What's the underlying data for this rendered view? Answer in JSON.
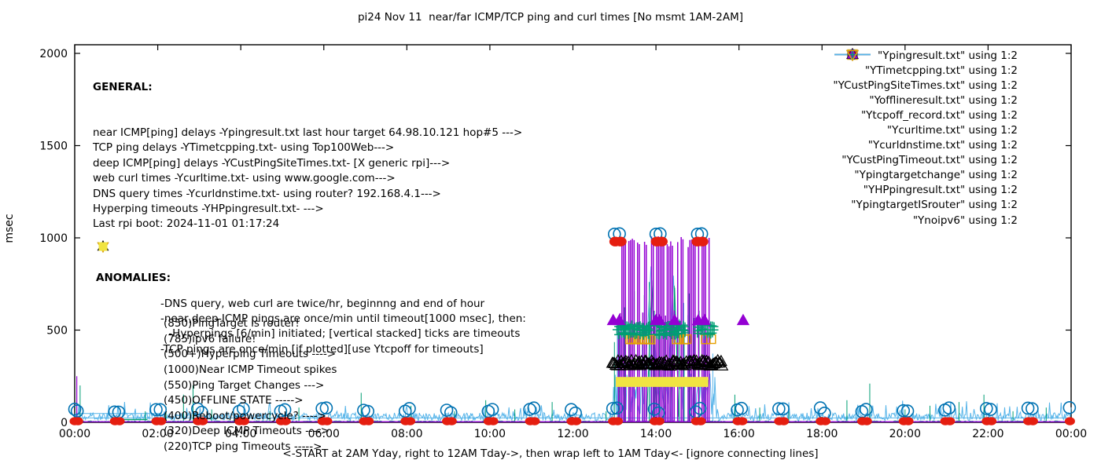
{
  "title": "pi24 Nov 11  near/far ICMP/TCP ping and curl times [No msmt 1AM-2AM]",
  "ylabel": "msec",
  "xlabel": "<-START at 2AM Yday, right to 12AM Tday->, then wrap left to 1AM Tday<- [ignore connecting lines]",
  "general": {
    "header": "GENERAL:",
    "lines": [
      "near ICMP[ping] delays -Ypingresult.txt last hour target 64.98.10.121 hop#5 --->",
      "TCP ping delays -YTimetcpping.txt- using Top100Web--->",
      "deep ICMP[ping] delays -YCustPingSiteTimes.txt- [X generic rpi]--->",
      "web curl times -Ycurltime.txt- using www.google.com--->",
      "DNS query times -Ycurldnstime.txt- using router? 192.168.4.1--->",
      "Hyperping timeouts -YHPpingresult.txt- --->",
      "Last rpi boot: 2024-11-01 01:17:24"
    ],
    "indented_lines": [
      "-DNS query, web curl are twice/hr, beginnng and end of hour",
      "-near,deep ICMP pings are once/min until timeout[1000 msec], then:",
      " -Hyperpings [6/min] initiated; [vertical stacked] ticks are timeouts",
      "-TCP pings are once/min [if plotted][use Ytcpoff for timeouts]"
    ]
  },
  "anomalies": {
    "header": "ANOMALIES:",
    "items": [
      {
        "icon": "open-triangle-down",
        "color": "#56b4e9",
        "text": "(850)PingTarget is router!"
      },
      {
        "icon": "open-triangle-down",
        "color": "#e69f00",
        "text": "(785)ipv6 failure!"
      },
      {
        "icon": "plus",
        "color": "#009e73",
        "text": "(500+)Hyperping Timeouts ---->"
      },
      {
        "icon": null,
        "color": null,
        "text": "(1000)Near ICMP Timeout spikes"
      },
      {
        "icon": "filled-triangle-up",
        "color": "#9400d3",
        "text": "(550)Ping Target Changes --->"
      },
      {
        "icon": null,
        "color": null,
        "text": "(450)OFFLINE STATE ----->"
      },
      {
        "icon": null,
        "color": null,
        "text": "(400)Reboot/powercycle? ---->"
      },
      {
        "icon": "open-triangle-up",
        "color": "#000000",
        "text": "(320)Deep ICMP Timeouts ---->"
      },
      {
        "icon": "filled-square",
        "color": "#f0e442",
        "text": "(220)TCP ping Timeouts ----->"
      }
    ]
  },
  "chart_data": {
    "type": "line",
    "title": "pi24 Nov 11  near/far ICMP/TCP ping and curl times [No msmt 1AM-2AM]",
    "xlabel": "<-START at 2AM Yday, right to 12AM Tday->, then wrap left to 1AM Tday<- [ignore connecting lines]",
    "ylabel": "msec",
    "grid": false,
    "legend_position": "top-right-inside",
    "x_axis": {
      "range_hours": [
        0,
        24
      ],
      "tick_hours": [
        0,
        2,
        4,
        6,
        8,
        10,
        12,
        14,
        16,
        18,
        20,
        22,
        24
      ],
      "tick_labels": [
        "00:00",
        "02:00",
        "04:00",
        "06:00",
        "08:00",
        "10:00",
        "12:00",
        "14:00",
        "16:00",
        "18:00",
        "20:00",
        "22:00",
        "00:00"
      ]
    },
    "y_axis": {
      "range": [
        0,
        2000
      ],
      "ticks": [
        0,
        500,
        1000,
        1500,
        2000
      ],
      "label": "msec"
    },
    "event_window_hours": [
      12.97,
      15.45
    ],
    "series": [
      {
        "file": "Ypingresult.txt",
        "legend_label": "\"Ypingresult.txt\" using 1:2",
        "color": "#9400d3",
        "style": "line",
        "baseline_msec": 3,
        "spikes": [
          [
            0.05,
            250
          ]
        ],
        "event_vertical_lines": {
          "start": 12.97,
          "end": 15.32,
          "step": 0.042,
          "skip_fraction": 0.25,
          "tall_top_range": [
            950,
            1015
          ],
          "short_top_range": [
            540,
            625
          ],
          "short_fraction": 0.15
        }
      },
      {
        "file": "YTimetcpping.txt",
        "legend_label": "\"YTimetcpping.txt\" using 1:2",
        "color": "#009e73",
        "style": "line",
        "noise": {
          "base": 2,
          "amp": 6
        },
        "flat_segments": [
          [
            1.15,
            1.75,
            15
          ]
        ],
        "spikes": [
          [
            0.13,
            200
          ],
          [
            1.7,
            60
          ],
          [
            2.2,
            85
          ],
          [
            2.62,
            150
          ],
          [
            2.85,
            200
          ],
          [
            3.3,
            70
          ],
          [
            4.7,
            60
          ],
          [
            5.4,
            80
          ],
          [
            6.9,
            160
          ],
          [
            8.1,
            90
          ],
          [
            9.15,
            60
          ],
          [
            9.9,
            120
          ],
          [
            10.6,
            70
          ],
          [
            11.5,
            110
          ],
          [
            12.8,
            60
          ],
          [
            15.9,
            150
          ],
          [
            16.5,
            80
          ],
          [
            17.2,
            90
          ],
          [
            18.6,
            120
          ],
          [
            19.15,
            210
          ],
          [
            20.0,
            70
          ],
          [
            20.6,
            90
          ],
          [
            21.3,
            110
          ],
          [
            21.9,
            150
          ],
          [
            22.6,
            60
          ],
          [
            23.4,
            80
          ]
        ],
        "event_vertical_lines": {
          "start": 13.0,
          "end": 15.28,
          "step": 0.12,
          "skip_fraction": 0.35,
          "tall_top_range": [
            420,
            800
          ],
          "short_top_range": [
            420,
            800
          ],
          "short_fraction": 0
        },
        "event_peaks": [
          [
            13.9,
            770,
            0.12
          ],
          [
            14.45,
            730,
            0.1
          ]
        ]
      },
      {
        "file": "YCustPingSiteTimes.txt",
        "legend_label": "\"YCustPingSiteTimes.txt\" using 1:2",
        "color": "#56b4e9",
        "style": "line",
        "noise": {
          "base": 10,
          "amp": 42,
          "spike_chance": 0.08,
          "spike_amp": 75
        },
        "flat_segments": [
          [
            0,
            24,
            24
          ],
          [
            0,
            2.1,
            48
          ]
        ],
        "event_noise": {
          "base": 40,
          "amp": 230
        },
        "event_peaks": [
          [
            13.88,
            845,
            0.2
          ],
          [
            14.42,
            795,
            0.16
          ]
        ]
      },
      {
        "file": "Yofflineresult.txt",
        "legend_label": "\"Yofflineresult.txt\" using 1:2",
        "color": "#e69f00",
        "style": "open-square",
        "points": [
          [
            13.38,
            450
          ],
          [
            13.42,
            452
          ],
          [
            13.47,
            449
          ],
          [
            13.52,
            451
          ],
          [
            13.57,
            450
          ],
          [
            13.62,
            452
          ],
          [
            13.67,
            449
          ],
          [
            13.72,
            451
          ],
          [
            13.77,
            450
          ],
          [
            13.82,
            451
          ],
          [
            13.87,
            449
          ],
          [
            14.5,
            450
          ],
          [
            14.56,
            452
          ],
          [
            14.68,
            449
          ],
          [
            14.74,
            451
          ],
          [
            15.2,
            450
          ],
          [
            15.33,
            451
          ]
        ]
      },
      {
        "file": "Ytcpoff_record.txt",
        "legend_label": "\"Ytcpoff_record.txt\" using 1:2",
        "color": "#f0e442",
        "style": "filled-square",
        "band": {
          "start_hour": 13.03,
          "end_hour": 15.26,
          "msec_low": 192,
          "msec_high": 246
        }
      },
      {
        "file": "Ycurltime.txt",
        "legend_label": "\"Ycurltime.txt\" using 1:2",
        "color": "#0072b2",
        "style": "open-circle",
        "hourly_pairs": {
          "offsets": [
            -0.04,
            0.06
          ],
          "value_range": [
            48,
            80
          ]
        },
        "event_points": [
          [
            13.0,
            1020
          ],
          [
            13.12,
            1022
          ],
          [
            14.0,
            1020
          ],
          [
            14.1,
            1022
          ],
          [
            15.0,
            1020
          ],
          [
            15.1,
            1022
          ]
        ]
      },
      {
        "file": "Ycurldnstime.txt",
        "legend_label": "\"Ycurldnstime.txt\" using 1:2",
        "color": "#e51e10",
        "style": "filled-circle",
        "hourly_pairs": {
          "offsets": [
            -0.03,
            0.08
          ],
          "value": 6
        },
        "event_points": [
          [
            13.02,
            980
          ],
          [
            13.15,
            980
          ],
          [
            14.02,
            980
          ],
          [
            14.14,
            980
          ],
          [
            15.0,
            980
          ],
          [
            15.12,
            980
          ]
        ]
      },
      {
        "file": "YCustPingTimeout.txt",
        "legend_label": "\"YCustPingTimeout.txt\" using 1:2",
        "color": "#000000",
        "style": "open-triangle-up",
        "dense_row": {
          "start": 12.95,
          "end": 15.6,
          "step": 0.027,
          "msec": 320,
          "jitter": 15
        }
      },
      {
        "file": "Ypingtargetchange",
        "legend_label": "\"Ypingtargetchange\" using 1:2",
        "color": "#9400d3",
        "style": "filled-triangle-up",
        "points": [
          [
            12.97,
            552
          ],
          [
            13.12,
            552
          ],
          [
            14.0,
            552
          ],
          [
            14.09,
            552
          ],
          [
            14.45,
            552
          ],
          [
            15.02,
            552
          ],
          [
            15.17,
            552
          ],
          [
            16.1,
            552
          ]
        ]
      },
      {
        "file": "YHPpingresult.txt",
        "legend_label": "\"YHPpingresult.txt\" using 1:2",
        "color": "#009e73",
        "style": "plus",
        "clusters": [
          [
            13.06,
            13.86
          ],
          [
            14.02,
            14.72
          ],
          [
            15.0,
            15.42
          ]
        ],
        "cluster_step": 0.04,
        "msec_rows": [
          478,
          500,
          522
        ],
        "jitter": 8
      },
      {
        "file": "YpingtargetISrouter",
        "legend_label": "\"YpingtargetISrouter\" using 1:2",
        "color": "#56b4e9",
        "style": "open-triangle-down",
        "points": []
      },
      {
        "file": "Ynoipv6",
        "legend_label": "\"Ynoipv6\" using 1:2",
        "color": "#e69f00",
        "style": "open-triangle-down",
        "points": []
      }
    ]
  }
}
